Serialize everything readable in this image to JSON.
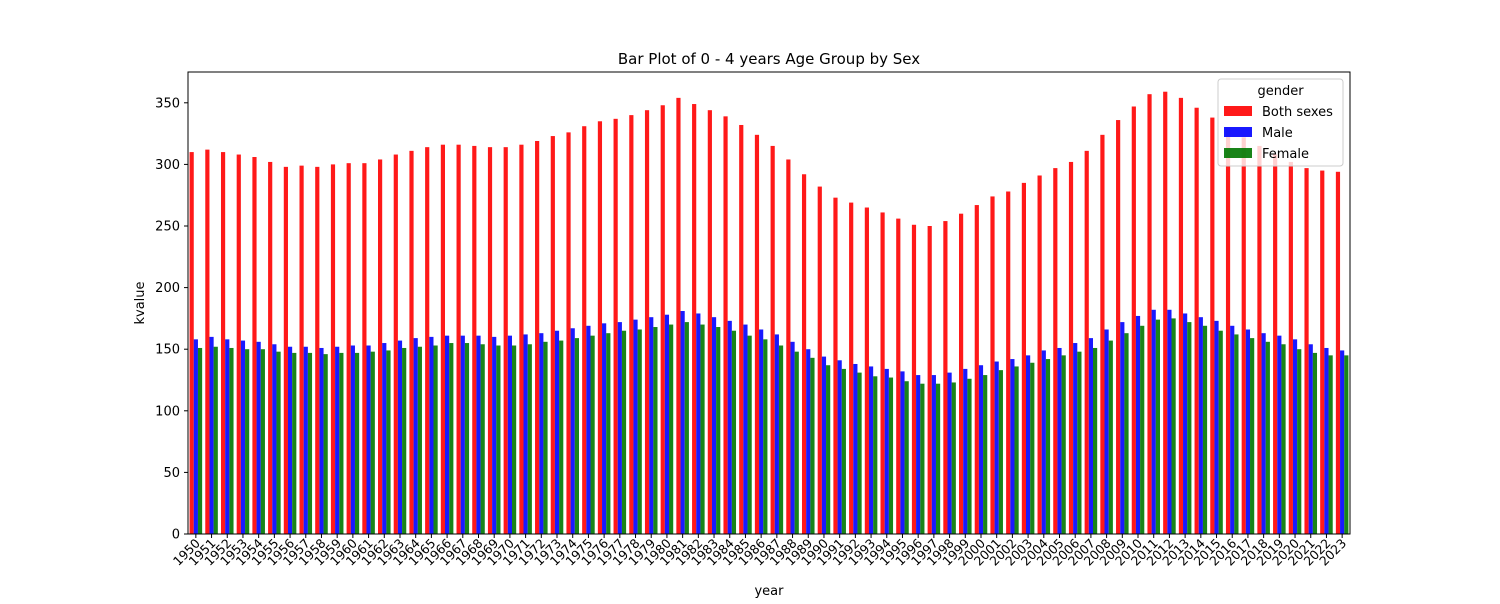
{
  "chart_data": {
    "type": "bar",
    "title": "Bar Plot of 0 - 4 years Age Group by Sex",
    "xlabel": "year",
    "ylabel": "kvalue",
    "ylim": [
      0,
      375
    ],
    "yticks": [
      0,
      50,
      100,
      150,
      200,
      250,
      300,
      350
    ],
    "grid": false,
    "legend": {
      "title": "gender",
      "placement": "top-right"
    },
    "categories": [
      "1950",
      "1951",
      "1952",
      "1953",
      "1954",
      "1955",
      "1956",
      "1957",
      "1958",
      "1959",
      "1960",
      "1961",
      "1962",
      "1963",
      "1964",
      "1965",
      "1966",
      "1967",
      "1968",
      "1969",
      "1970",
      "1971",
      "1972",
      "1973",
      "1974",
      "1975",
      "1976",
      "1977",
      "1978",
      "1979",
      "1980",
      "1981",
      "1982",
      "1983",
      "1984",
      "1985",
      "1986",
      "1987",
      "1988",
      "1989",
      "1990",
      "1991",
      "1992",
      "1993",
      "1994",
      "1995",
      "1996",
      "1997",
      "1998",
      "1999",
      "2000",
      "2001",
      "2002",
      "2003",
      "2004",
      "2005",
      "2006",
      "2007",
      "2008",
      "2009",
      "2010",
      "2011",
      "2012",
      "2013",
      "2014",
      "2015",
      "2016",
      "2017",
      "2018",
      "2019",
      "2020",
      "2021",
      "2022",
      "2023"
    ],
    "series": [
      {
        "name": "Both sexes",
        "color": "#ff0000",
        "values": [
          310,
          312,
          310,
          308,
          306,
          302,
          298,
          299,
          298,
          300,
          301,
          301,
          304,
          308,
          311,
          314,
          316,
          316,
          315,
          314,
          314,
          316,
          319,
          323,
          326,
          331,
          335,
          337,
          340,
          344,
          348,
          354,
          349,
          344,
          339,
          332,
          324,
          315,
          304,
          292,
          282,
          273,
          269,
          265,
          261,
          256,
          251,
          250,
          254,
          260,
          267,
          274,
          278,
          285,
          291,
          297,
          302,
          311,
          324,
          336,
          347,
          357,
          359,
          354,
          346,
          338,
          330,
          322,
          315,
          308,
          302,
          297,
          295,
          294
        ]
      },
      {
        "name": "Male",
        "color": "#0000ff",
        "values": [
          158,
          160,
          158,
          157,
          156,
          154,
          152,
          152,
          151,
          152,
          153,
          153,
          155,
          157,
          159,
          160,
          161,
          161,
          161,
          160,
          161,
          162,
          163,
          165,
          167,
          169,
          171,
          172,
          174,
          176,
          178,
          181,
          179,
          176,
          173,
          170,
          166,
          162,
          156,
          150,
          144,
          141,
          138,
          136,
          134,
          132,
          129,
          129,
          131,
          134,
          137,
          140,
          142,
          145,
          149,
          151,
          155,
          159,
          166,
          172,
          177,
          182,
          182,
          179,
          176,
          173,
          169,
          166,
          163,
          161,
          158,
          154,
          151,
          149
        ]
      },
      {
        "name": "Female",
        "color": "#007700",
        "values": [
          151,
          152,
          151,
          150,
          150,
          148,
          147,
          147,
          146,
          147,
          147,
          148,
          149,
          151,
          152,
          153,
          155,
          155,
          154,
          153,
          153,
          154,
          156,
          157,
          159,
          161,
          163,
          165,
          166,
          168,
          170,
          172,
          170,
          168,
          165,
          161,
          158,
          153,
          148,
          143,
          137,
          134,
          131,
          128,
          127,
          124,
          122,
          122,
          123,
          126,
          129,
          133,
          136,
          139,
          142,
          145,
          148,
          151,
          157,
          163,
          169,
          174,
          175,
          172,
          169,
          165,
          162,
          159,
          156,
          154,
          150,
          147,
          145,
          145
        ]
      }
    ]
  }
}
